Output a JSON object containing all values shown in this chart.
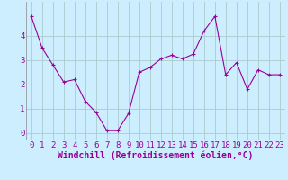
{
  "x": [
    0,
    1,
    2,
    3,
    4,
    5,
    6,
    7,
    8,
    9,
    10,
    11,
    12,
    13,
    14,
    15,
    16,
    17,
    18,
    19,
    20,
    21,
    22,
    23
  ],
  "y": [
    4.8,
    3.5,
    2.8,
    2.1,
    2.2,
    1.3,
    0.85,
    0.1,
    0.1,
    0.8,
    2.5,
    2.7,
    3.05,
    3.2,
    3.05,
    3.25,
    4.2,
    4.8,
    2.4,
    2.9,
    1.8,
    2.6,
    2.4,
    2.4
  ],
  "line_color": "#990099",
  "marker": "+",
  "marker_size": 3,
  "marker_linewidth": 0.8,
  "bg_color": "#cceeff",
  "grid_color": "#aacccc",
  "xlabel": "Windchill (Refroidissement éolien,°C)",
  "xlabel_color": "#990099",
  "tick_color": "#990099",
  "ylim": [
    -0.3,
    5.4
  ],
  "xlim": [
    -0.5,
    23.5
  ],
  "yticks": [
    0,
    1,
    2,
    3,
    4
  ],
  "xticks": [
    0,
    1,
    2,
    3,
    4,
    5,
    6,
    7,
    8,
    9,
    10,
    11,
    12,
    13,
    14,
    15,
    16,
    17,
    18,
    19,
    20,
    21,
    22,
    23
  ],
  "xtick_labels": [
    "0",
    "1",
    "2",
    "3",
    "4",
    "5",
    "6",
    "7",
    "8",
    "9",
    "10",
    "11",
    "12",
    "13",
    "14",
    "15",
    "16",
    "17",
    "18",
    "19",
    "20",
    "21",
    "22",
    "23"
  ],
  "ytick_labels": [
    "0",
    "1",
    "2",
    "3",
    "4"
  ],
  "line_width": 0.8,
  "font_size": 6.5,
  "xlabel_fontsize": 7.0
}
